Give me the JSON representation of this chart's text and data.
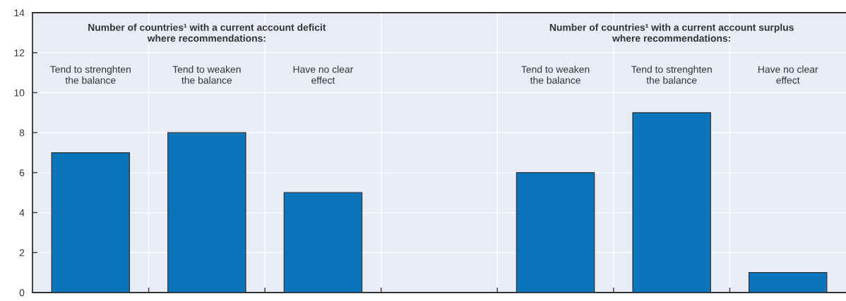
{
  "chart_data": {
    "type": "bar",
    "categories": [
      "Tend to strenghten\nthe balance",
      "Tend to weaken\nthe balance",
      "Have no clear\neffect",
      null,
      "Tend to weaken\nthe balance",
      "Tend to strenghten\nthe balance",
      "Have no clear\neffect"
    ],
    "values": [
      7,
      8,
      5,
      null,
      6,
      9,
      1
    ],
    "color": "#0b75bc",
    "ylim": [
      0,
      14
    ],
    "yticks": [
      0,
      2,
      4,
      6,
      8,
      10,
      12,
      14
    ],
    "grid": true,
    "annotations": [
      "Number of countries¹ with a current account deficit\nwhere recommendations:",
      "Number of countries¹ with a current account surplus\nwhere recommendations:"
    ]
  }
}
